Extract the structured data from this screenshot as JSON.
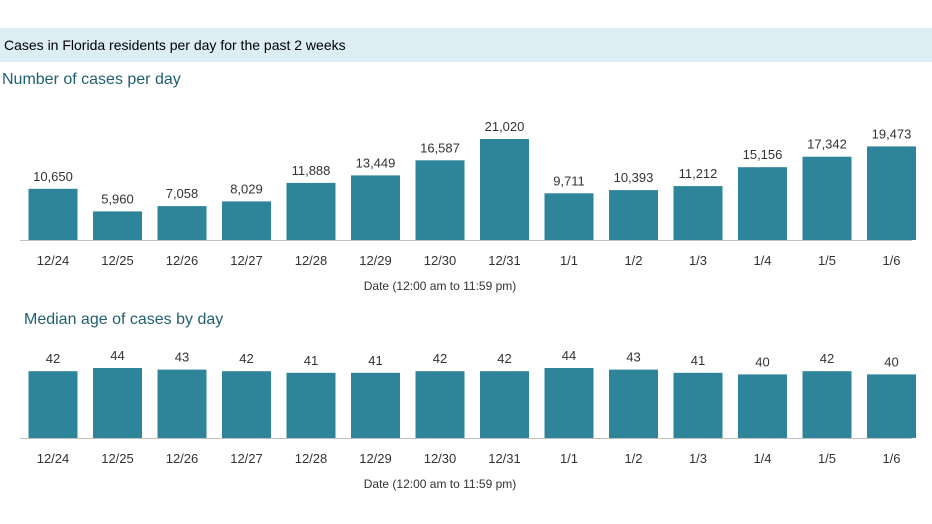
{
  "banner": {
    "title": "Cases in Florida residents per day for the past 2 weeks"
  },
  "chart_data": [
    {
      "type": "bar",
      "title": "Number of cases per day",
      "xlabel": "Date (12:00 am to 11:59 pm)",
      "ylabel": "",
      "categories": [
        "12/24",
        "12/25",
        "12/26",
        "12/27",
        "12/28",
        "12/29",
        "12/30",
        "12/31",
        "1/1",
        "1/2",
        "1/3",
        "1/4",
        "1/5",
        "1/6"
      ],
      "values": [
        10650,
        5960,
        7058,
        8029,
        11888,
        13449,
        16587,
        21020,
        9711,
        10393,
        11212,
        15156,
        17342,
        19473
      ],
      "value_labels": [
        "10,650",
        "5,960",
        "7,058",
        "8,029",
        "11,888",
        "13,449",
        "16,587",
        "21,020",
        "9,711",
        "10,393",
        "11,212",
        "15,156",
        "17,342",
        "19,473"
      ],
      "ylim": [
        0,
        21020
      ],
      "grid": false,
      "colors": {
        "bar": "#2e8498"
      }
    },
    {
      "type": "bar",
      "title": "Median age of cases by day",
      "xlabel": "Date (12:00 am to 11:59 pm)",
      "ylabel": "",
      "categories": [
        "12/24",
        "12/25",
        "12/26",
        "12/27",
        "12/28",
        "12/29",
        "12/30",
        "12/31",
        "1/1",
        "1/2",
        "1/3",
        "1/4",
        "1/5",
        "1/6"
      ],
      "values": [
        42,
        44,
        43,
        42,
        41,
        41,
        42,
        42,
        44,
        43,
        41,
        40,
        42,
        40
      ],
      "value_labels": [
        "42",
        "44",
        "43",
        "42",
        "41",
        "41",
        "42",
        "42",
        "44",
        "43",
        "41",
        "40",
        "42",
        "40"
      ],
      "ylim": [
        0,
        44
      ],
      "grid": false,
      "colors": {
        "bar": "#2e8498"
      }
    }
  ]
}
